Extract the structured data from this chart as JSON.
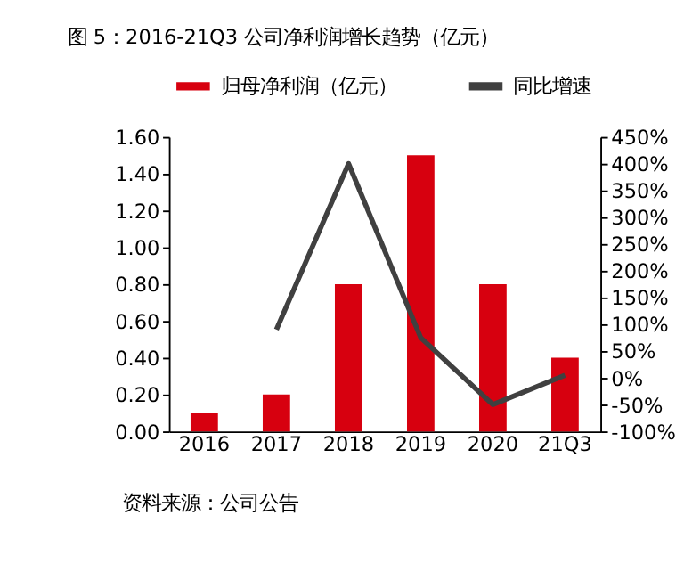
{
  "chart_data": {
    "type": "bar",
    "title": "图 5：2016-21Q3 公司净利润增长趋势（亿元）",
    "categories": [
      "2016",
      "2017",
      "2018",
      "2019",
      "2020",
      "21Q3"
    ],
    "series": [
      {
        "name": "归母净利润（亿元）",
        "color": "#d7000f",
        "values": [
          0.1,
          0.2,
          0.8,
          1.5,
          0.8,
          0.4
        ]
      },
      {
        "name": "同比增速",
        "type": "line",
        "axis": "y2",
        "color": "#404040",
        "values": [
          null,
          90,
          400,
          75,
          -50,
          5
        ]
      }
    ],
    "ylim": [
      0,
      1.6
    ],
    "yticks": [
      {
        "value": 0,
        "label": "0.00"
      },
      {
        "value": 0.2,
        "label": "0.20"
      },
      {
        "value": 0.4,
        "label": "0.40"
      },
      {
        "value": 0.6,
        "label": "0.60"
      },
      {
        "value": 0.8,
        "label": "0.80"
      },
      {
        "value": 1.0,
        "label": "1.00"
      },
      {
        "value": 1.2,
        "label": "1.20"
      },
      {
        "value": 1.4,
        "label": "1.40"
      },
      {
        "value": 1.6,
        "label": "1.60"
      }
    ],
    "y2lim": [
      -100,
      450
    ],
    "y2ticks": [
      {
        "value": -100,
        "label": "-100%"
      },
      {
        "value": -50,
        "label": "-50%"
      },
      {
        "value": 0,
        "label": "0%"
      },
      {
        "value": 50,
        "label": "50%"
      },
      {
        "value": 100,
        "label": "100%"
      },
      {
        "value": 150,
        "label": "150%"
      },
      {
        "value": 200,
        "label": "200%"
      },
      {
        "value": 250,
        "label": "250%"
      },
      {
        "value": 300,
        "label": "300%"
      },
      {
        "value": 350,
        "label": "350%"
      },
      {
        "value": 400,
        "label": "400%"
      },
      {
        "value": 450,
        "label": "450%"
      }
    ],
    "grid": false,
    "legend": "top",
    "marker": "none",
    "line_style": "solid",
    "annotations": [
      "资料来源：公司公告"
    ]
  }
}
